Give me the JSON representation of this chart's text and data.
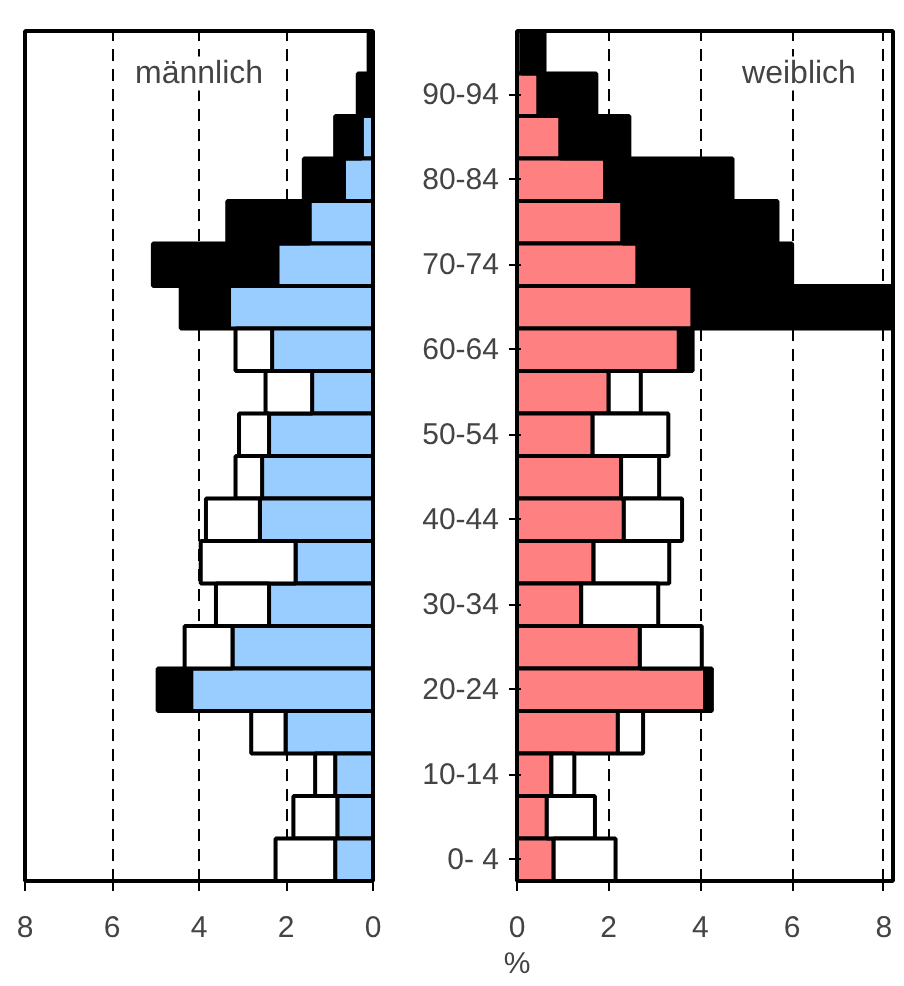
{
  "chart_data": [
    {
      "type": "bar",
      "orientation": "horizontal",
      "stacked": true,
      "title": "männlich",
      "tick_labels": "x",
      "grid": "x",
      "categories": [
        null,
        null,
        null,
        null,
        null,
        null,
        null,
        null,
        null,
        null,
        null,
        null,
        null,
        null,
        null,
        null,
        null,
        null,
        null,
        null
      ],
      "xlim": [
        8,
        0
      ],
      "xticks": [
        8,
        6,
        4,
        2,
        0
      ],
      "series": [
        {
          "color": "#99ccff",
          "values": [
            null,
            null,
            0.26,
            0.67,
            1.46,
            2.2,
            3.31,
            2.32,
            1.4,
            2.39,
            2.55,
            2.6,
            1.78,
            2.39,
            3.23,
            4.18,
            2.01,
            0.87,
            0.82,
            0.87
          ]
        },
        {
          "color": "#000000",
          "values": [
            0.1,
            0.35,
            0.61,
            0.92,
            1.89,
            2.86,
            1.11,
            null,
            null,
            null,
            null,
            null,
            null,
            null,
            null,
            0.77,
            null,
            null,
            null,
            null
          ]
        },
        {
          "color": "#ffffff",
          "values": [
            null,
            null,
            null,
            null,
            null,
            null,
            null,
            0.84,
            1.07,
            0.69,
            0.61,
            1.24,
            2.18,
            1.22,
            1.1,
            null,
            0.79,
            0.46,
            1.01,
            1.37
          ]
        }
      ]
    },
    {
      "type": "bar",
      "orientation": "horizontal",
      "stacked": true,
      "title": "weiblich",
      "xlabel": "%",
      "grid": "x",
      "categories": [
        null,
        "90-94",
        null,
        "80-84",
        null,
        "70-74",
        null,
        "60-64",
        null,
        "50-54",
        null,
        "40-44",
        null,
        "30-34",
        null,
        "20-24",
        null,
        "10-14",
        null,
        "0- 4"
      ],
      "xlim": [
        0,
        8.2
      ],
      "xticks": [
        0,
        2,
        4,
        6,
        8
      ],
      "series": [
        {
          "color": "#ff8080",
          "values": [
            0.1,
            0.47,
            0.95,
            1.92,
            2.3,
            2.63,
            3.83,
            3.53,
            2.0,
            1.65,
            2.27,
            2.33,
            1.67,
            1.4,
            2.68,
            4.1,
            2.2,
            0.75,
            0.65,
            0.8
          ]
        },
        {
          "color": "#000000",
          "values": [
            0.5,
            1.26,
            1.5,
            2.78,
            3.38,
            3.37,
            4.32,
            0.3,
            null,
            null,
            null,
            null,
            null,
            null,
            null,
            0.15,
            null,
            null,
            null,
            null
          ]
        },
        {
          "color": "#ffffff",
          "values": [
            null,
            null,
            null,
            null,
            null,
            null,
            null,
            null,
            0.7,
            1.65,
            0.83,
            1.27,
            1.65,
            1.68,
            1.35,
            null,
            0.55,
            0.5,
            1.05,
            1.35
          ]
        }
      ]
    }
  ]
}
